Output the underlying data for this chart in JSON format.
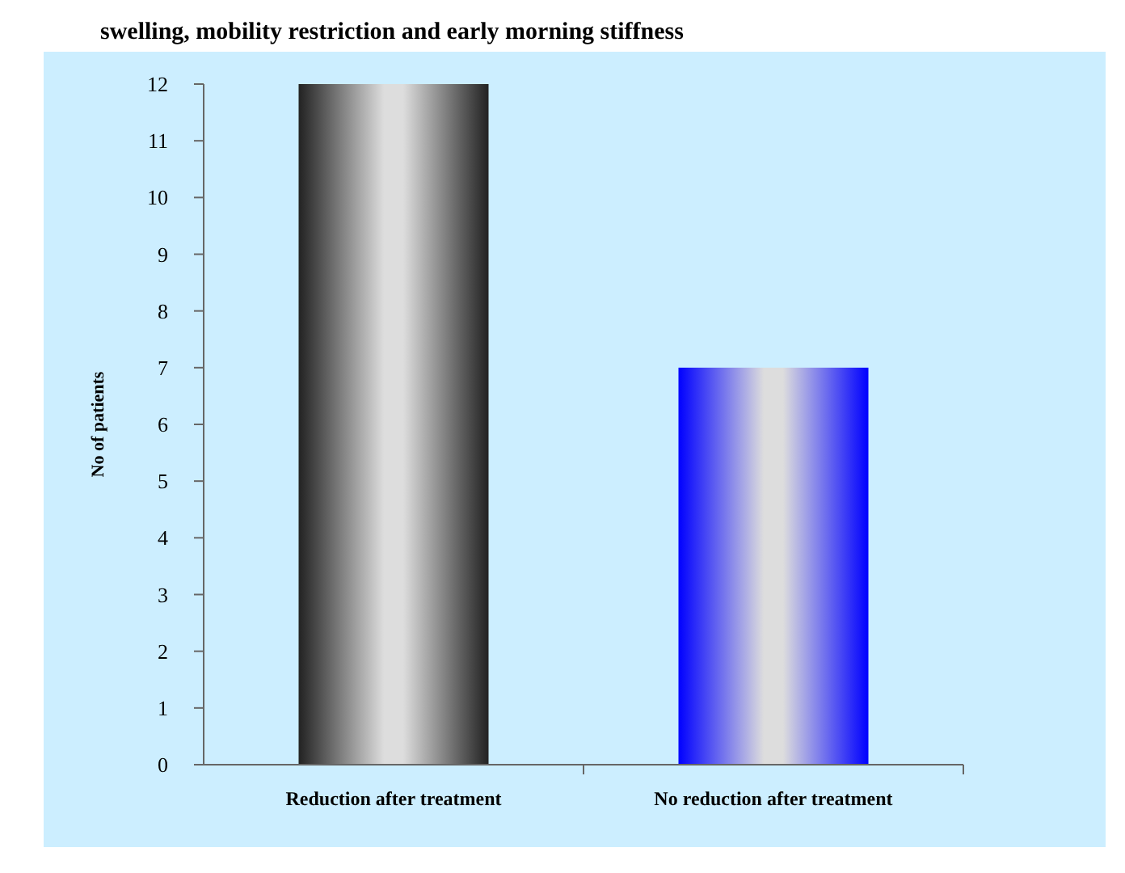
{
  "chart_data": {
    "type": "bar",
    "title": "swelling, mobility restriction and early morning stiffness",
    "ylabel": "No of patients",
    "categories": [
      "Reduction after treatment",
      "No reduction after treatment"
    ],
    "values": [
      12,
      7
    ],
    "colors": [
      "#222222",
      "#0000ff"
    ],
    "ylim": [
      0,
      12
    ],
    "yticks": [
      0,
      1,
      2,
      3,
      4,
      5,
      6,
      7,
      8,
      9,
      10,
      11,
      12
    ]
  }
}
